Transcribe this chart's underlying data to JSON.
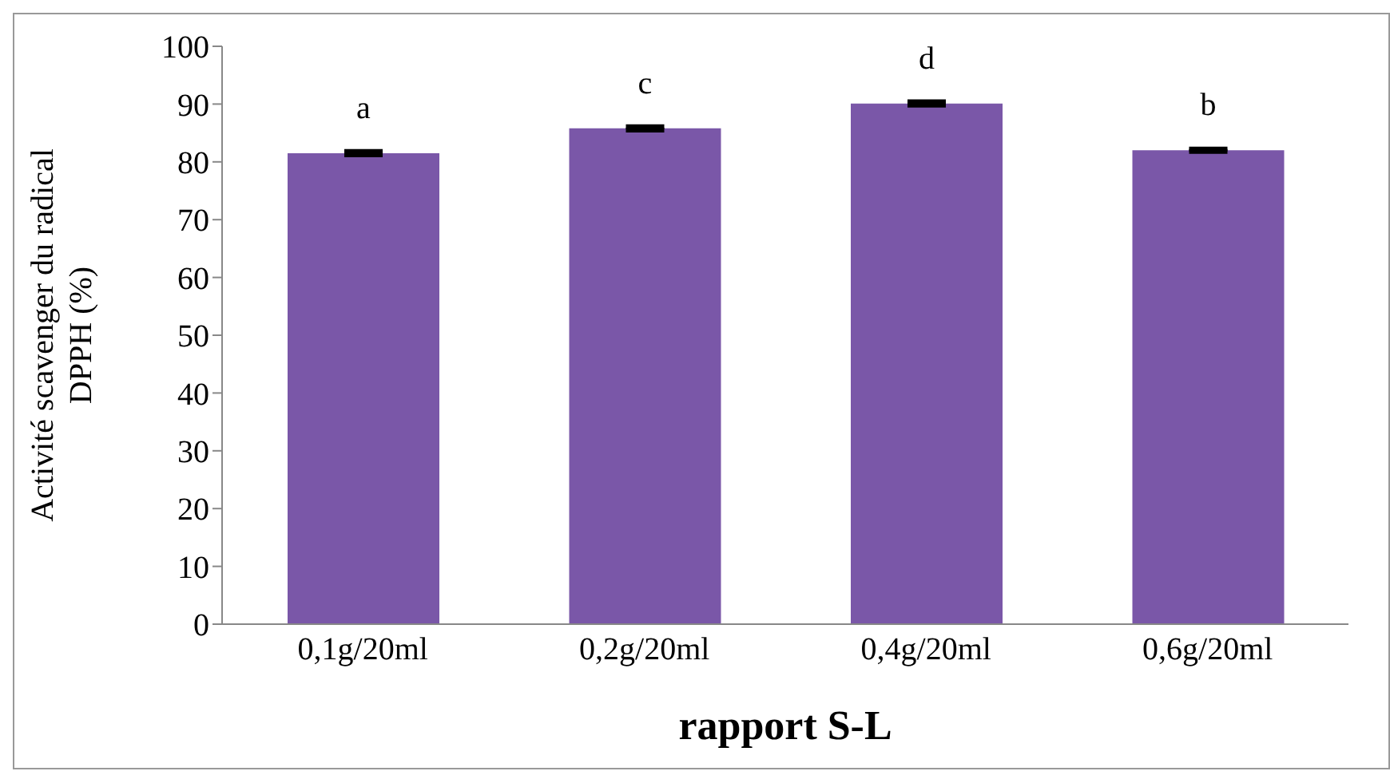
{
  "chart_data": {
    "type": "bar",
    "xlabel": "rapport S-L",
    "ylabel": "Activité scavenger du radical DPPH (%)",
    "categories": [
      "0,1g/20ml",
      "0,2g/20ml",
      "0,4g/20ml",
      "0,6g/20ml"
    ],
    "values": [
      81.5,
      85.8,
      90.1,
      82
    ],
    "errors": [
      0.3,
      0.3,
      0.3,
      0.2
    ],
    "color": "#7a57a8",
    "ylim": [
      0,
      100
    ],
    "yticks": [
      0,
      10,
      20,
      30,
      40,
      50,
      60,
      70,
      80,
      90,
      100
    ],
    "grid": false,
    "legend": false,
    "annotations": [
      "a",
      "c",
      "d",
      "b"
    ]
  }
}
